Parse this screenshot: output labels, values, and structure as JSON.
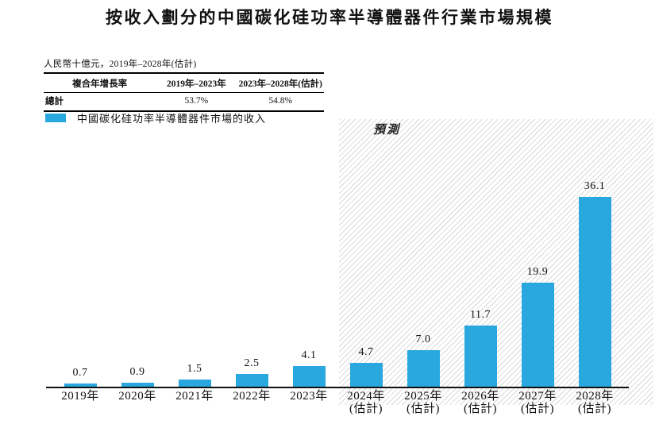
{
  "title": "按收入劃分的中國碳化硅功率半導體器件行業市場規模",
  "subtitle": "人民幣十億元，2019年–2028年(估計)",
  "cagr_table": {
    "headers": [
      "複合年增長率",
      "2019年–2023年",
      "2023年–2028年(估計)"
    ],
    "rows": [
      {
        "label": "總計",
        "values": [
          "53.7%",
          "54.8%"
        ]
      }
    ]
  },
  "legend": {
    "label": "中國碳化硅功率半導體器件市場的收入",
    "color": "#29A8E0"
  },
  "chart_data": {
    "type": "bar",
    "title": "按收入劃分的中國碳化硅功率半導體器件行業市場規模",
    "unit_label": "人民幣十億元",
    "categories": [
      {
        "year": "2019年",
        "note": ""
      },
      {
        "year": "2020年",
        "note": ""
      },
      {
        "year": "2021年",
        "note": ""
      },
      {
        "year": "2022年",
        "note": ""
      },
      {
        "year": "2023年",
        "note": ""
      },
      {
        "year": "2024年",
        "note": "(估計)"
      },
      {
        "year": "2025年",
        "note": "(估計)"
      },
      {
        "year": "2026年",
        "note": "(估計)"
      },
      {
        "year": "2027年",
        "note": "(估計)"
      },
      {
        "year": "2028年",
        "note": "(估計)"
      }
    ],
    "values": [
      0.7,
      0.9,
      1.5,
      2.5,
      4.1,
      4.7,
      7.0,
      11.7,
      19.9,
      36.1
    ],
    "value_labels": [
      "0.7",
      "0.9",
      "1.5",
      "2.5",
      "4.1",
      "4.7",
      "7.0",
      "11.7",
      "19.9",
      "36.1"
    ],
    "is_forecast": [
      false,
      false,
      false,
      false,
      false,
      true,
      true,
      true,
      true,
      true
    ],
    "forecast_annotation": "預測",
    "bar_color": "#29A8E0",
    "hatch_color": "#e1e1e1",
    "ylim": [
      0,
      40
    ],
    "grid": false,
    "legend_position": "top-left",
    "legend_entries": [
      "中國碳化硅功率半導體器件市場的收入"
    ]
  }
}
